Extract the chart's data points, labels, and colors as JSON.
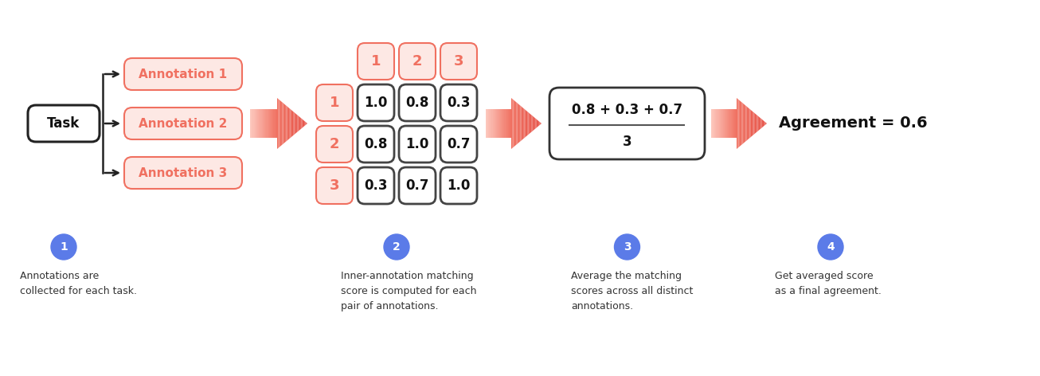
{
  "bg_color": "#ffffff",
  "annotation_color": "#F07060",
  "annotation_fill": "#FDE8E4",
  "annotation_border": "#F07060",
  "task_fill": "#ffffff",
  "task_border": "#222222",
  "matrix_header_fill": "#FDE8E4",
  "matrix_header_border": "#F07060",
  "matrix_cell_fill": "#ffffff",
  "matrix_cell_border": "#444444",
  "fraction_box_fill": "#ffffff",
  "fraction_box_border": "#333333",
  "arrow_start": "#FDCCC4",
  "arrow_end": "#F07060",
  "step_circle_color": "#5B7BE8",
  "annotations": [
    "Annotation 1",
    "Annotation 2",
    "Annotation 3"
  ],
  "matrix_values": [
    [
      1.0,
      0.8,
      0.3
    ],
    [
      0.8,
      1.0,
      0.7
    ],
    [
      0.3,
      0.7,
      1.0
    ]
  ],
  "fraction_numerator": "0.8 + 0.3 + 0.7",
  "fraction_denominator": "3",
  "agreement_text": "Agreement = 0.6",
  "step_labels": [
    "1",
    "2",
    "3",
    "4"
  ],
  "step_descriptions": [
    "Annotations are\ncollected for each task.",
    "Inner-annotation matching\nscore is computed for each\npair of annotations.",
    "Average the matching\nscores across all distinct\nannotations.",
    "Get averaged score\nas a final agreement."
  ]
}
